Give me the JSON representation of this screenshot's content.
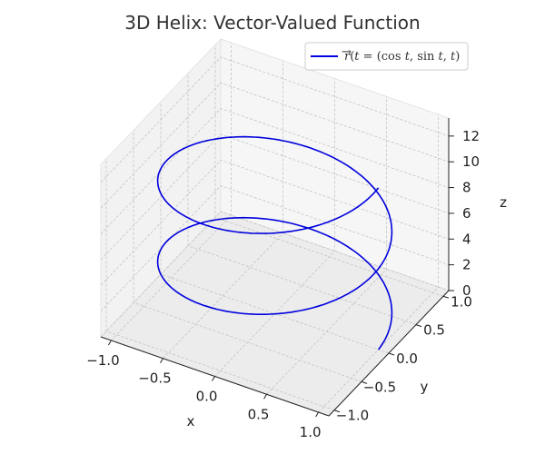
{
  "chart_data": {
    "type": "line",
    "projection": "3d",
    "title": "3D Helix: Vector-Valued Function",
    "xlabel": "x",
    "ylabel": "y",
    "zlabel": "z",
    "xlim": [
      -1.1,
      1.1
    ],
    "ylim": [
      -1.1,
      1.1
    ],
    "zlim": [
      0,
      12.566
    ],
    "x_ticks": [
      "−1.0",
      "−0.5",
      "0.0",
      "0.5",
      "1.0"
    ],
    "y_ticks": [
      "−1.0",
      "−0.5",
      "0.0",
      "0.5",
      "1.0"
    ],
    "z_ticks": [
      "0",
      "2",
      "4",
      "6",
      "8",
      "10",
      "12"
    ],
    "grid": true,
    "legend_position": "top-right",
    "series": [
      {
        "name": "r(t) = (cos t, sin t, t)",
        "name_display": {
          "r": "r",
          "t": "t",
          "eq": " = (",
          "cos": "cos",
          "sin": "sin",
          "close": ")"
        },
        "color": "#0000dd",
        "parametric": {
          "x": "cos t",
          "y": "sin t",
          "z": "t",
          "t_range": [
            0,
            12.566
          ]
        }
      }
    ]
  }
}
